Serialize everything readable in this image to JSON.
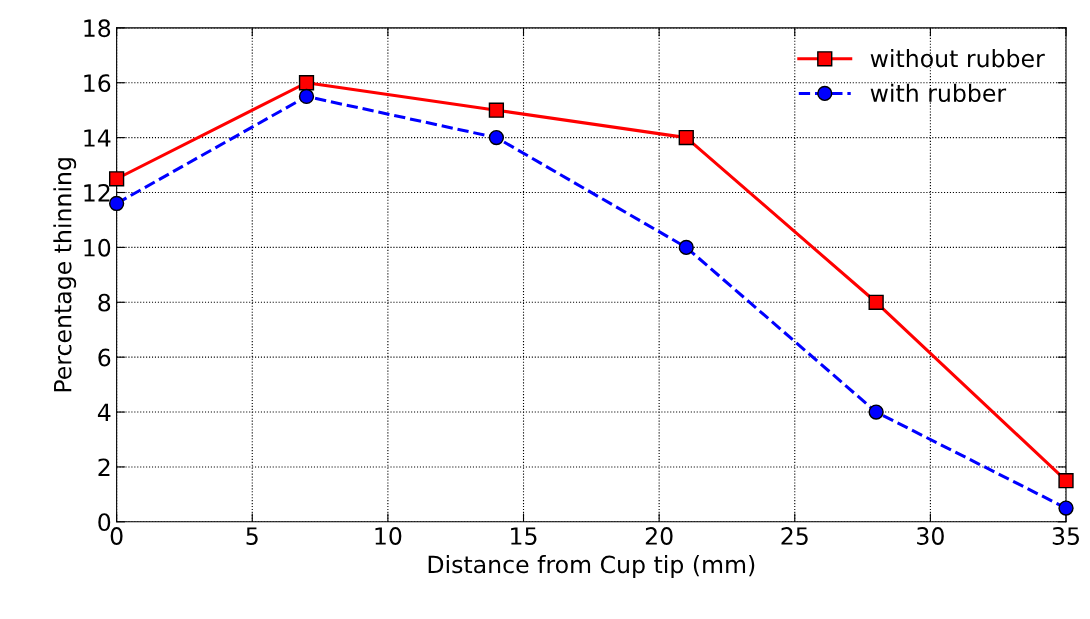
{
  "chart_data": {
    "type": "line",
    "xlabel": "Distance from Cup tip (mm)",
    "ylabel": "Percentage thinning",
    "x": [
      0,
      7,
      14,
      21,
      28,
      35
    ],
    "series": [
      {
        "name": "without rubber",
        "color": "#ff0000",
        "values": [
          12.5,
          16,
          15,
          14,
          8,
          1.5
        ],
        "marker": "square",
        "line_style": "solid"
      },
      {
        "name": "with rubber",
        "color": "#0000ff",
        "values": [
          11.6,
          15.5,
          14,
          10,
          4,
          0.5
        ],
        "marker": "circle",
        "line_style": "dashed"
      }
    ],
    "xlim": [
      0,
      35
    ],
    "xticks": [
      0,
      5,
      10,
      15,
      20,
      25,
      30,
      35
    ],
    "ylim": [
      0,
      18
    ],
    "yticks": [
      0,
      2,
      4,
      6,
      8,
      10,
      12,
      14,
      16,
      18
    ],
    "grid": true,
    "legend": "top right"
  }
}
